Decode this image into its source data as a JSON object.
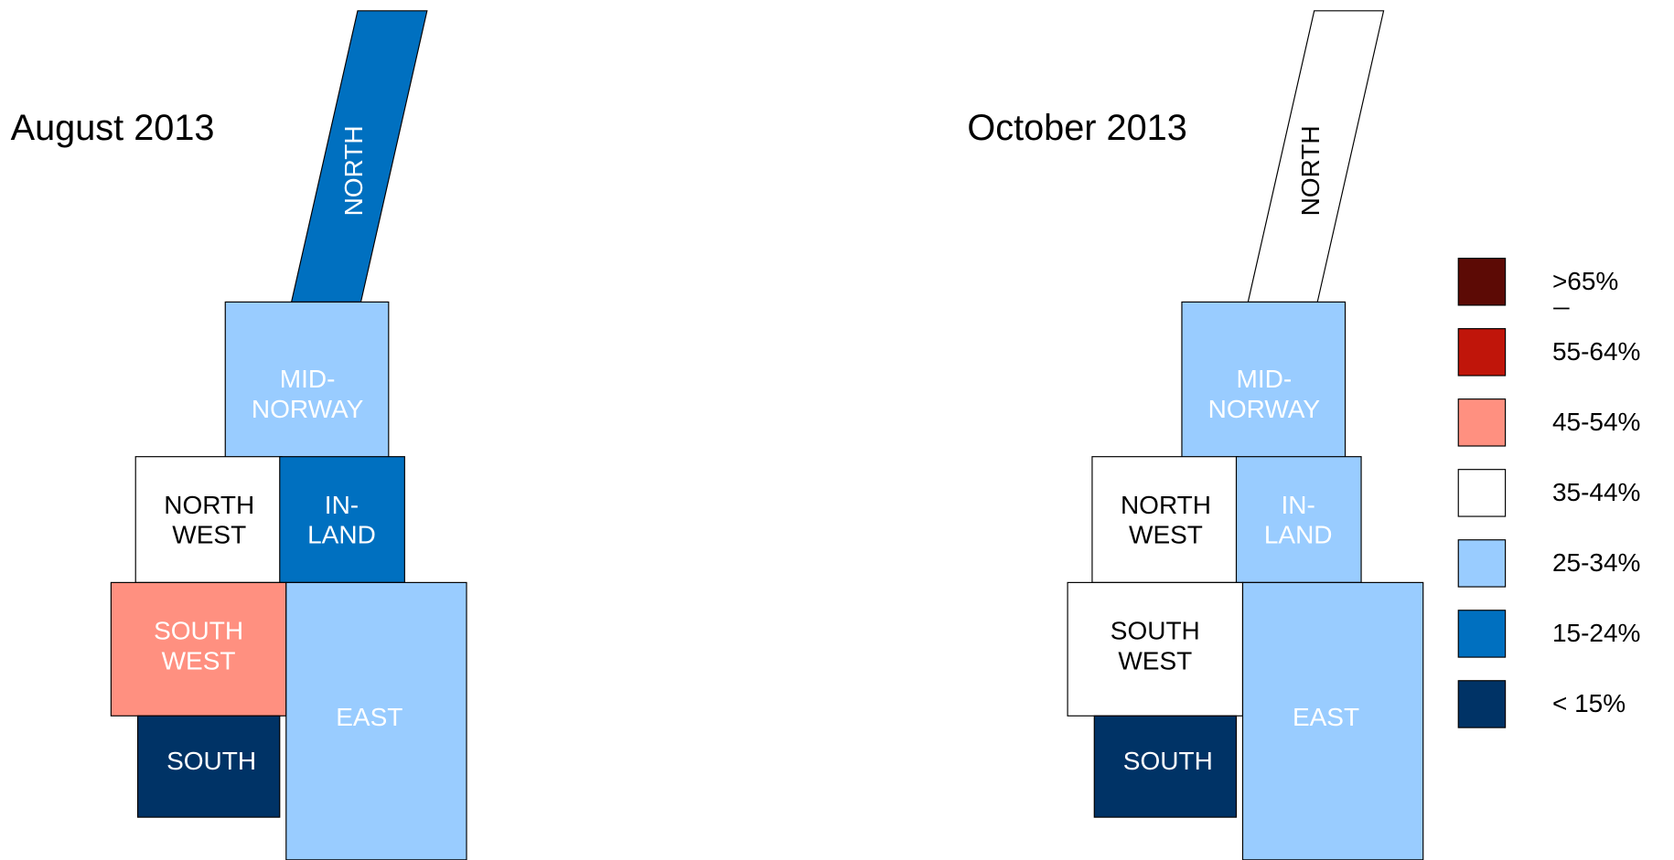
{
  "panels": [
    {
      "title": "August 2013",
      "regions": [
        {
          "label": [
            "NORTH"
          ],
          "color": "#0070c0"
        },
        {
          "label": [
            "MID-",
            "NORWAY"
          ],
          "color": "#99ccff"
        },
        {
          "label": [
            "NORTH",
            "WEST"
          ],
          "color": "#ffffff"
        },
        {
          "label": [
            "IN-",
            "LAND"
          ],
          "color": "#0070c0"
        },
        {
          "label": [
            "SOUTH",
            "WEST"
          ],
          "color": "#ff9080"
        },
        {
          "label": [
            "SOUTH"
          ],
          "color": "#003366"
        },
        {
          "label": [
            "EAST"
          ],
          "color": "#99ccff"
        }
      ]
    },
    {
      "title": "October 2013",
      "regions": [
        {
          "label": [
            "NORTH"
          ],
          "color": "#ffffff"
        },
        {
          "label": [
            "MID-",
            "NORWAY"
          ],
          "color": "#99ccff"
        },
        {
          "label": [
            "NORTH",
            "WEST"
          ],
          "color": "#ffffff"
        },
        {
          "label": [
            "IN-",
            "LAND"
          ],
          "color": "#99ccff"
        },
        {
          "label": [
            "SOUTH",
            "WEST"
          ],
          "color": "#ffffff"
        },
        {
          "label": [
            "SOUTH"
          ],
          "color": "#003366"
        },
        {
          "label": [
            "EAST"
          ],
          "color": "#99ccff"
        }
      ]
    }
  ],
  "legend": [
    {
      "label": ">65%",
      "color": "#5c0a05"
    },
    {
      "label": "55-64%",
      "color": "#c0150a"
    },
    {
      "label": "45-54%",
      "color": "#ff9080"
    },
    {
      "label": "35-44%",
      "color": "#ffffff"
    },
    {
      "label": "25-34%",
      "color": "#99ccff"
    },
    {
      "label": "15-24%",
      "color": "#0070c0"
    },
    {
      "label": "< 15%",
      "color": "#003366"
    }
  ]
}
